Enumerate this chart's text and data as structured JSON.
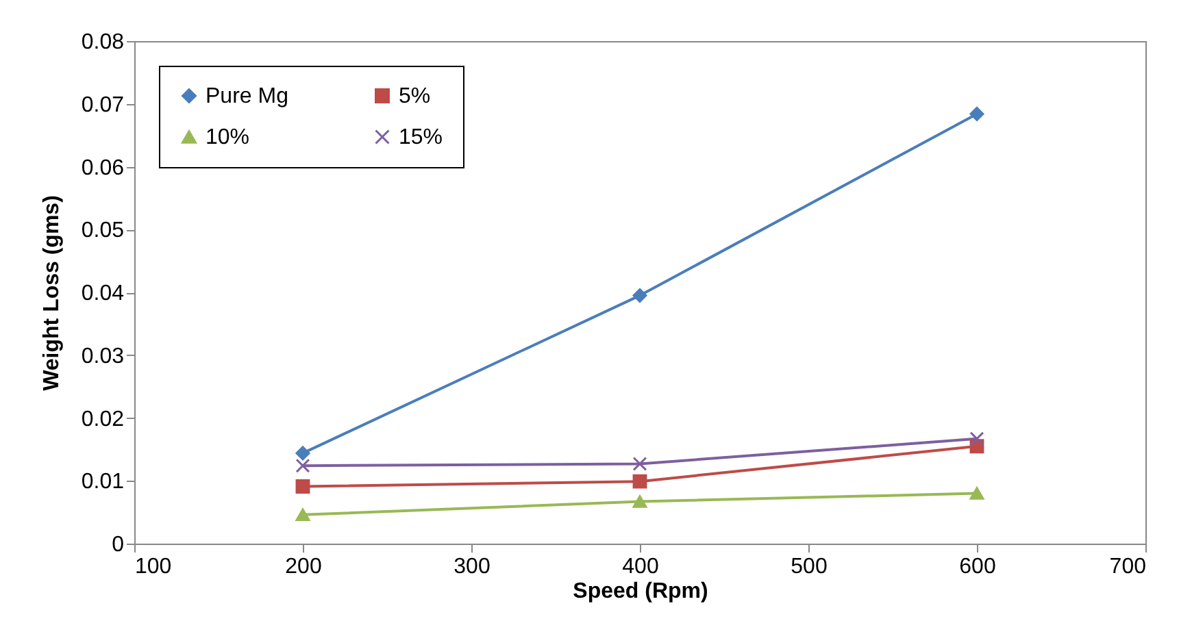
{
  "chart_data": {
    "type": "line",
    "xlabel": "Speed (Rpm)",
    "ylabel": "Weight Loss (gms)",
    "x": [
      200,
      400,
      600
    ],
    "series": [
      {
        "name": "Pure Mg",
        "color": "#4a7ebb",
        "marker": "diamond",
        "values": [
          0.0144,
          0.0395,
          0.0684
        ]
      },
      {
        "name": "5%",
        "color": "#be4b48",
        "marker": "square",
        "values": [
          0.0091,
          0.0099,
          0.0155
        ]
      },
      {
        "name": "10%",
        "color": "#98b954",
        "marker": "triangle",
        "values": [
          0.0046,
          0.0067,
          0.008
        ]
      },
      {
        "name": "15%",
        "color": "#7d5fa0",
        "marker": "cross",
        "values": [
          0.0124,
          0.0127,
          0.0167
        ]
      }
    ],
    "xlim": [
      100,
      700
    ],
    "xticks": [
      100,
      200,
      300,
      400,
      500,
      600,
      700
    ],
    "ylim": [
      0,
      0.08
    ],
    "yticks": [
      0,
      0.01,
      0.02,
      0.03,
      0.04,
      0.05,
      0.06,
      0.07,
      0.08
    ],
    "grid": false,
    "legend": "top left",
    "line_style": "solid"
  }
}
